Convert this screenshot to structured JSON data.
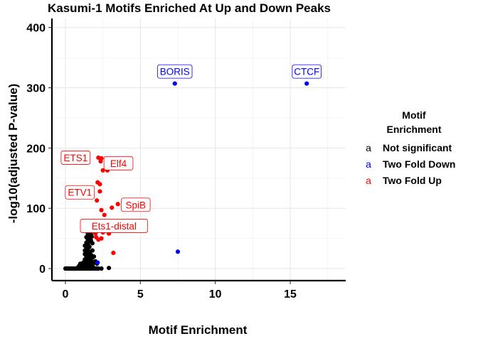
{
  "chart_data": {
    "type": "scatter",
    "title": "Kasumi-1 Motifs Enriched At Up and Down Peaks",
    "xlabel": "Motif Enrichment",
    "ylabel": "-log10(adjusted P-value)",
    "xlim": [
      -0.9,
      18.7
    ],
    "ylim": [
      -20,
      415
    ],
    "x_ticks": [
      0,
      5,
      10,
      15
    ],
    "y_ticks": [
      0,
      100,
      200,
      300,
      400
    ],
    "grid": true,
    "legend": {
      "title_line1": "Motif",
      "title_line2": "Enrichment",
      "position": "right",
      "key_glyph": "a",
      "entries": [
        {
          "label": "Not significant",
          "color": "#000000"
        },
        {
          "label": "Two Fold Down",
          "color": "#0000ff"
        },
        {
          "label": "Two Fold Up",
          "color": "#ff0000"
        }
      ]
    },
    "series": [
      {
        "name": "Not significant",
        "color": "#000000",
        "points": [
          [
            0.0,
            0
          ],
          [
            0.1,
            0
          ],
          [
            0.2,
            0
          ],
          [
            0.3,
            0
          ],
          [
            0.4,
            0
          ],
          [
            0.5,
            0
          ],
          [
            0.6,
            0
          ],
          [
            0.7,
            0
          ],
          [
            0.8,
            0
          ],
          [
            0.9,
            0
          ],
          [
            1.0,
            0
          ],
          [
            1.1,
            0
          ],
          [
            1.2,
            0
          ],
          [
            1.3,
            0
          ],
          [
            1.4,
            0
          ],
          [
            1.5,
            0
          ],
          [
            1.6,
            0
          ],
          [
            1.7,
            0
          ],
          [
            1.8,
            0
          ],
          [
            1.9,
            0
          ],
          [
            2.0,
            0
          ],
          [
            2.1,
            0
          ],
          [
            2.2,
            0
          ],
          [
            2.4,
            0
          ],
          [
            2.9,
            1
          ],
          [
            0.8,
            1
          ],
          [
            1.0,
            2
          ],
          [
            1.1,
            1
          ],
          [
            1.2,
            3
          ],
          [
            1.3,
            2
          ],
          [
            1.4,
            4
          ],
          [
            1.5,
            3
          ],
          [
            1.6,
            5
          ],
          [
            1.7,
            2
          ],
          [
            1.8,
            4
          ],
          [
            1.9,
            1
          ],
          [
            1.1,
            5
          ],
          [
            1.2,
            6
          ],
          [
            1.3,
            8
          ],
          [
            1.4,
            7
          ],
          [
            1.5,
            9
          ],
          [
            1.6,
            6
          ],
          [
            1.7,
            8
          ],
          [
            1.8,
            5
          ],
          [
            1.2,
            10
          ],
          [
            1.3,
            12
          ],
          [
            1.4,
            11
          ],
          [
            1.5,
            14
          ],
          [
            1.6,
            10
          ],
          [
            1.7,
            13
          ],
          [
            1.3,
            15
          ],
          [
            1.4,
            17
          ],
          [
            1.5,
            16
          ],
          [
            1.6,
            19
          ],
          [
            1.7,
            15
          ],
          [
            1.8,
            18
          ],
          [
            1.4,
            20
          ],
          [
            1.5,
            22
          ],
          [
            1.6,
            21
          ],
          [
            1.3,
            24
          ],
          [
            1.5,
            25
          ],
          [
            1.7,
            23
          ],
          [
            1.4,
            28
          ],
          [
            1.6,
            27
          ],
          [
            1.3,
            30
          ],
          [
            1.5,
            32
          ],
          [
            1.4,
            35
          ],
          [
            1.6,
            36
          ],
          [
            1.5,
            40
          ],
          [
            1.4,
            43
          ],
          [
            1.6,
            45
          ],
          [
            1.5,
            48
          ],
          [
            1.7,
            47
          ],
          [
            1.4,
            52
          ],
          [
            1.6,
            50
          ],
          [
            1.5,
            55
          ],
          [
            1.5,
            58
          ],
          [
            1.6,
            60
          ],
          [
            1.5,
            62
          ],
          [
            1.7,
            57
          ],
          [
            1.3,
            38
          ],
          [
            1.8,
            30
          ],
          [
            1.9,
            20
          ],
          [
            2.0,
            12
          ],
          [
            2.1,
            8
          ],
          [
            1.9,
            10
          ],
          [
            1.0,
            8
          ],
          [
            0.9,
            4
          ],
          [
            1.8,
            42
          ],
          [
            1.75,
            53
          ]
        ]
      },
      {
        "name": "Two Fold Down",
        "color": "#0000ff",
        "points": [
          [
            7.3,
            307
          ],
          [
            16.1,
            307
          ],
          [
            7.5,
            28
          ],
          [
            2.15,
            10
          ]
        ]
      },
      {
        "name": "Two Fold Up",
        "color": "#ff0000",
        "points": [
          [
            2.2,
            184
          ],
          [
            2.4,
            183
          ],
          [
            2.35,
            178
          ],
          [
            2.5,
            163
          ],
          [
            2.8,
            163
          ],
          [
            2.15,
            143
          ],
          [
            2.3,
            140
          ],
          [
            2.3,
            128
          ],
          [
            2.1,
            113
          ],
          [
            3.5,
            107
          ],
          [
            3.1,
            101
          ],
          [
            2.4,
            97
          ],
          [
            2.2,
            72
          ],
          [
            2.55,
            68
          ],
          [
            4.2,
            65
          ],
          [
            2.5,
            60
          ],
          [
            2.9,
            58
          ],
          [
            2.0,
            58
          ],
          [
            3.2,
            26
          ],
          [
            2.1,
            62
          ],
          [
            2.3,
            75
          ],
          [
            2.6,
            89
          ],
          [
            2.05,
            52
          ],
          [
            2.4,
            50
          ],
          [
            2.2,
            48
          ]
        ]
      }
    ],
    "annotations": [
      {
        "label": "BORIS",
        "x": 7.3,
        "y": 307,
        "color": "#0000ff"
      },
      {
        "label": "CTCF",
        "x": 16.1,
        "y": 307,
        "color": "#0000ff"
      },
      {
        "label": "ETS1",
        "x": 2.2,
        "y": 184,
        "color": "#ff0000"
      },
      {
        "label": "Elf4",
        "x": 2.4,
        "y": 183,
        "color": "#ff0000"
      },
      {
        "label": "ETV1",
        "x": 2.15,
        "y": 143,
        "color": "#ff0000"
      },
      {
        "label": "SpiB",
        "x": 3.5,
        "y": 107,
        "color": "#ff0000"
      },
      {
        "label": "Ets1-distal",
        "x": 2.2,
        "y": 72,
        "color": "#ff0000"
      }
    ]
  }
}
